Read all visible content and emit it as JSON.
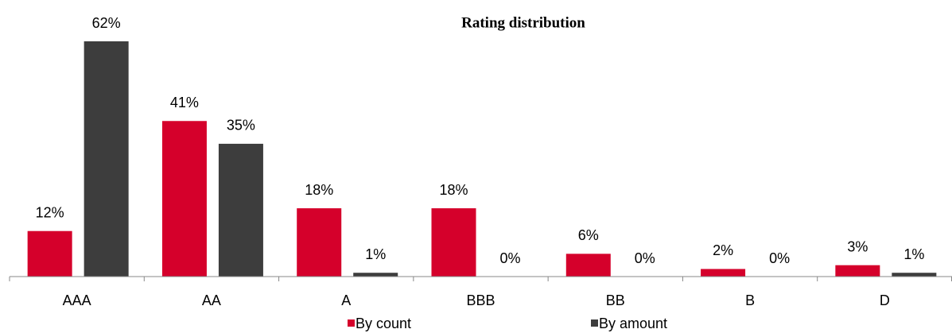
{
  "chart_data": {
    "type": "bar",
    "title": "Rating distribution",
    "categories": [
      "AAA",
      "AA",
      "A",
      "BBB",
      "BB",
      "B",
      "D"
    ],
    "series": [
      {
        "name": "By count",
        "color": "#d5002b",
        "values": [
          12,
          41,
          18,
          18,
          6,
          2,
          3
        ],
        "value_labels": [
          "12%",
          "41%",
          "18%",
          "18%",
          "6%",
          "2%",
          "3%"
        ]
      },
      {
        "name": "By amount",
        "color": "#3d3d3d",
        "values": [
          62,
          35,
          1,
          0,
          0,
          0,
          1
        ],
        "value_labels": [
          "62%",
          "35%",
          "1%",
          "0%",
          "0%",
          "0%",
          "1%"
        ]
      }
    ],
    "legend": "bottom"
  }
}
